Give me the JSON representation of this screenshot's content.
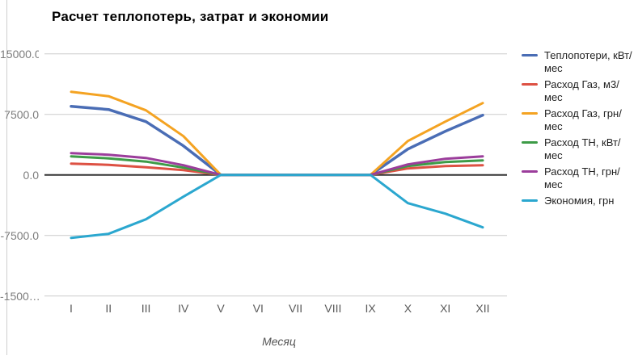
{
  "chart_data": {
    "type": "line",
    "title": "Расчет теплопотерь, затрат и экономии",
    "xlabel": "Месяц",
    "categories": [
      "I",
      "II",
      "III",
      "IV",
      "V",
      "VI",
      "VII",
      "VIII",
      "IX",
      "X",
      "XI",
      "XII"
    ],
    "ylim": [
      -15000,
      15000
    ],
    "grid": true,
    "legend_position": "right",
    "grid_color": "#cccccc",
    "zero_line_color": "#333333",
    "y_ticks": [
      {
        "value": 15000,
        "label": "15000.0"
      },
      {
        "value": 7500,
        "label": "7500.0"
      },
      {
        "value": 0,
        "label": "0.0"
      },
      {
        "value": -7500,
        "label": "-7500.0"
      },
      {
        "value": -15000,
        "label": "-1500…"
      }
    ],
    "series": [
      {
        "name": "Теплопотери, кВт/мес",
        "color": "#4a6db5",
        "values": [
          8500,
          8100,
          6600,
          3600,
          0,
          0,
          0,
          0,
          0,
          3200,
          5400,
          7400
        ]
      },
      {
        "name": "Расход Газ, м3/мес",
        "color": "#dd5143",
        "values": [
          1400,
          1250,
          950,
          600,
          0,
          0,
          0,
          0,
          0,
          800,
          1100,
          1200
        ]
      },
      {
        "name": "Расход Газ, грн/мес",
        "color": "#f4a322",
        "values": [
          10300,
          9750,
          8000,
          4800,
          0,
          0,
          0,
          0,
          0,
          4200,
          6600,
          8900
        ]
      },
      {
        "name": "Расход ТН, кВт/мес",
        "color": "#3d9b47",
        "values": [
          2300,
          2050,
          1650,
          900,
          0,
          0,
          0,
          0,
          0,
          1100,
          1600,
          1800
        ]
      },
      {
        "name": "Расход ТН, грн/мес",
        "color": "#9b3d9b",
        "values": [
          2700,
          2500,
          2100,
          1200,
          0,
          0,
          0,
          0,
          0,
          1300,
          2000,
          2300
        ]
      },
      {
        "name": "Экономия, грн",
        "color": "#2ba7cf",
        "values": [
          -7800,
          -7300,
          -5500,
          -2700,
          0,
          0,
          0,
          0,
          0,
          -3500,
          -4800,
          -6500
        ]
      }
    ]
  }
}
